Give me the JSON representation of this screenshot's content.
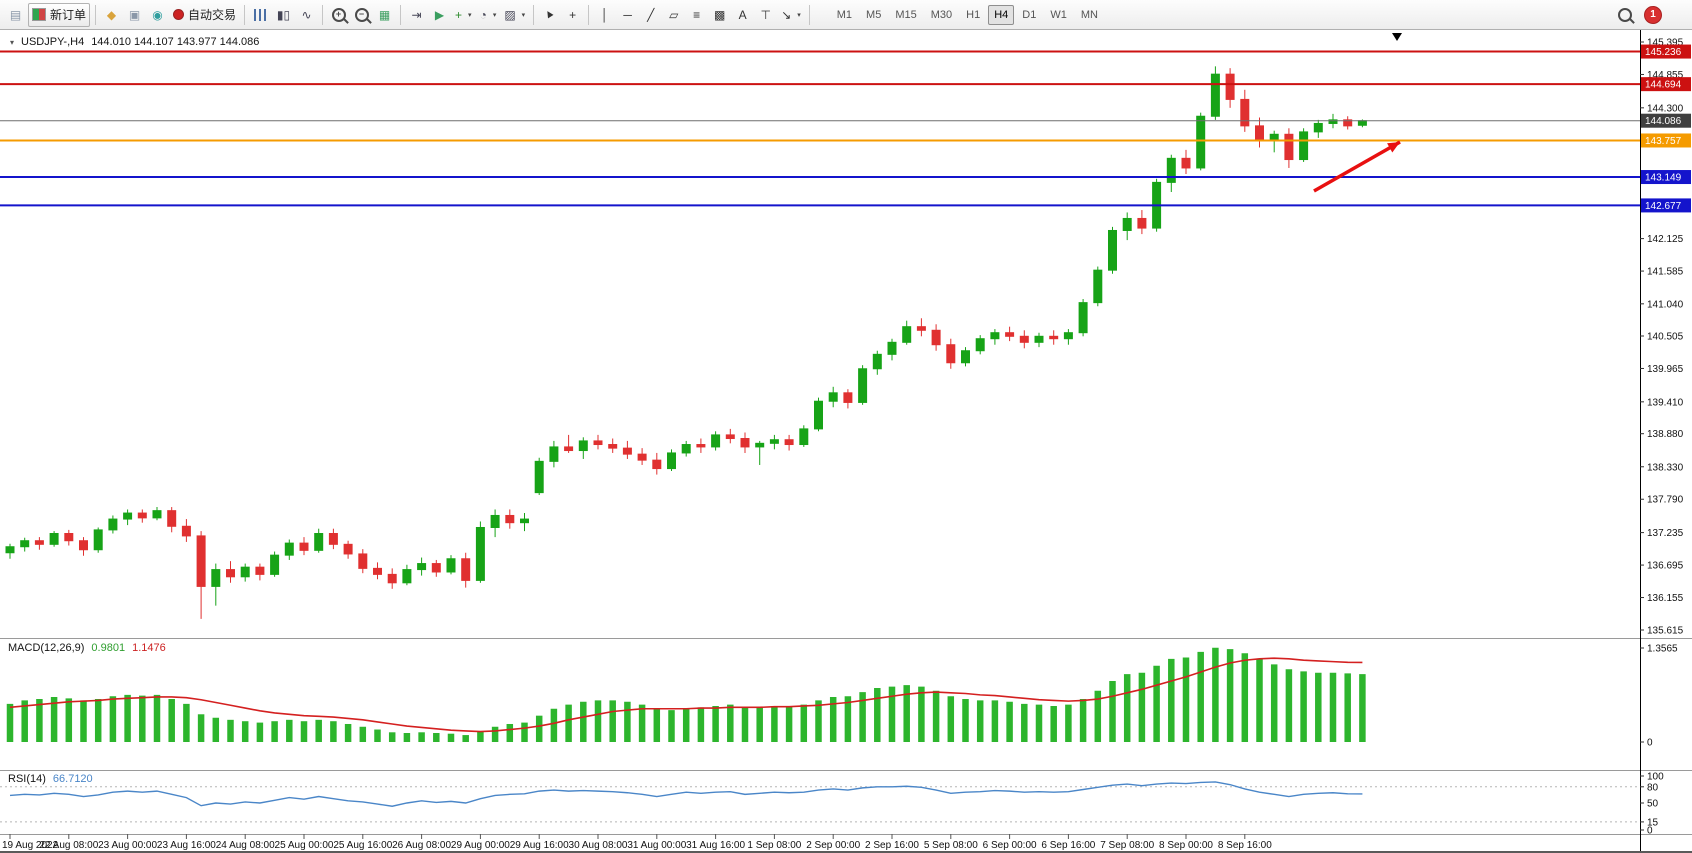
{
  "toolbar": {
    "items": [
      {
        "type": "icon",
        "name": "chart-window-icon",
        "glyph": "▤",
        "color": "#8a97a8"
      },
      {
        "type": "button",
        "name": "new-order-button",
        "shape": "ticket",
        "label": "新订单",
        "bordered": true
      },
      {
        "type": "sep"
      },
      {
        "type": "icon",
        "name": "market-watch-icon",
        "glyph": "◆",
        "color": "#d9a33c"
      },
      {
        "type": "icon",
        "name": "profiles-icon",
        "glyph": "▣",
        "color": "#8a97a8"
      },
      {
        "type": "icon",
        "name": "navigator-icon",
        "glyph": "◉",
        "color": "#2f9e9e"
      },
      {
        "type": "button",
        "name": "autotrading-button",
        "shape": "dot",
        "label": "自动交易"
      },
      {
        "type": "sep"
      },
      {
        "type": "icon",
        "name": "bar-chart-type-icon",
        "shape": "bars"
      },
      {
        "type": "icon",
        "name": "candlestick-type-icon",
        "glyph": "▮▯",
        "color": "#444455"
      },
      {
        "type": "icon",
        "name": "line-chart-type-icon",
        "glyph": "∿",
        "color": "#444455"
      },
      {
        "type": "sep"
      },
      {
        "type": "icon",
        "name": "zoom-in-icon",
        "shape": "magnifier",
        "sign": "+"
      },
      {
        "type": "icon",
        "name": "zoom-out-icon",
        "shape": "magnifier",
        "sign": "−"
      },
      {
        "type": "icon",
        "name": "tile-windows-icon",
        "glyph": "▦",
        "color": "#3a9e5f"
      },
      {
        "type": "sep"
      },
      {
        "type": "icon",
        "name": "chart-shift-icon",
        "glyph": "⇥",
        "color": "#444455"
      },
      {
        "type": "icon",
        "name": "auto-scroll-icon",
        "glyph": "▶",
        "color": "#3a9e5f"
      },
      {
        "type": "dropdown",
        "name": "indicators-menu",
        "glyph": "+",
        "color": "#2e8b2e"
      },
      {
        "type": "dropdown",
        "name": "periods-menu",
        "glyph": "◔",
        "color": "#444455"
      },
      {
        "type": "dropdown",
        "name": "templates-menu",
        "glyph": "▨",
        "color": "#444455"
      },
      {
        "type": "sep"
      },
      {
        "type": "icon",
        "name": "cursor-icon",
        "shape": "cursor"
      },
      {
        "type": "icon",
        "name": "crosshair-icon",
        "glyph": "+",
        "color": "#333333"
      },
      {
        "type": "sep"
      },
      {
        "type": "icon",
        "name": "vertical-line-icon",
        "glyph": "│",
        "color": "#333333"
      },
      {
        "type": "icon",
        "name": "horizontal-line-icon",
        "glyph": "─",
        "color": "#333333"
      },
      {
        "type": "icon",
        "name": "trendline-icon",
        "glyph": "╱",
        "color": "#333333"
      },
      {
        "type": "icon",
        "name": "channel-icon",
        "glyph": "▱",
        "color": "#333333"
      },
      {
        "type": "icon",
        "name": "fibonacci-icon",
        "glyph": "≡",
        "color": "#333333"
      },
      {
        "type": "icon",
        "name": "shapes-icon",
        "glyph": "▩",
        "color": "#333333"
      },
      {
        "type": "icon",
        "name": "text-icon",
        "glyph": "A",
        "color": "#333333"
      },
      {
        "type": "icon",
        "name": "text-label-icon",
        "glyph": "⊤",
        "color": "#333333"
      },
      {
        "type": "dropdown",
        "name": "arrows-menu",
        "glyph": "↘",
        "color": "#333333"
      },
      {
        "type": "sep"
      }
    ],
    "timeframes": [
      "M1",
      "M5",
      "M15",
      "M30",
      "H1",
      "H4",
      "D1",
      "W1",
      "MN"
    ],
    "active_timeframe": "H4",
    "notification_count": "1"
  },
  "chart": {
    "marker": "▾",
    "symbol_period": "USDJPY-,H4",
    "ohlc": "144.010 144.107 143.977 144.086"
  },
  "chart_data": {
    "type": "candlestick",
    "symbol": "USDJPY-",
    "timeframe": "H4",
    "ohlc": {
      "open": 144.01,
      "high": 144.107,
      "low": 143.977,
      "close": 144.086
    },
    "main": {
      "ylim": [
        135.615,
        145.395
      ]
    },
    "colors": {
      "bull": "#17a317",
      "bear": "#e03030",
      "macd_hist": "#2db52d",
      "macd_signal": "#d42020",
      "rsi": "#4a86c8",
      "background": "#ffffff"
    },
    "price_ticks": [
      "145.395",
      "144.855",
      "144.300",
      "142.125",
      "141.585",
      "141.040",
      "140.505",
      "139.965",
      "139.410",
      "138.880",
      "138.330",
      "137.790",
      "137.235",
      "136.695",
      "136.155",
      "135.615"
    ],
    "hlines": [
      {
        "price": 145.236,
        "label": "145.236",
        "color": "#cc1111",
        "badge": "#cc1111",
        "width": 2
      },
      {
        "price": 144.694,
        "label": "144.694",
        "color": "#cc1111",
        "badge": "#cc1111",
        "width": 2
      },
      {
        "price": 144.086,
        "label": "144.086",
        "color": "#6e6e6e",
        "badge": "#3f3f3f",
        "width": 1
      },
      {
        "price": 143.757,
        "label": "143.757",
        "color": "#f59b00",
        "badge": "#f59b00",
        "width": 2
      },
      {
        "price": 143.149,
        "label": "143.149",
        "color": "#1414cc",
        "badge": "#1414cc",
        "width": 2
      },
      {
        "price": 142.677,
        "label": "142.677",
        "color": "#1414cc",
        "badge": "#1414cc",
        "width": 2
      }
    ],
    "candles": [
      [
        136.9,
        137.05,
        136.8,
        137.0
      ],
      [
        137.0,
        137.15,
        136.92,
        137.1
      ],
      [
        137.1,
        137.16,
        136.95,
        137.04
      ],
      [
        137.04,
        137.26,
        137.0,
        137.22
      ],
      [
        137.22,
        137.28,
        137.02,
        137.1
      ],
      [
        137.1,
        137.16,
        136.85,
        136.95
      ],
      [
        136.95,
        137.32,
        136.9,
        137.28
      ],
      [
        137.28,
        137.52,
        137.22,
        137.46
      ],
      [
        137.46,
        137.62,
        137.36,
        137.56
      ],
      [
        137.56,
        137.62,
        137.4,
        137.48
      ],
      [
        137.48,
        137.66,
        137.44,
        137.6
      ],
      [
        137.6,
        137.66,
        137.24,
        137.34
      ],
      [
        137.34,
        137.46,
        137.08,
        137.18
      ],
      [
        137.18,
        137.26,
        135.8,
        136.34
      ],
      [
        136.34,
        136.72,
        136.02,
        136.62
      ],
      [
        136.62,
        136.76,
        136.4,
        136.5
      ],
      [
        136.5,
        136.72,
        136.42,
        136.66
      ],
      [
        136.66,
        136.72,
        136.44,
        136.54
      ],
      [
        136.54,
        136.92,
        136.5,
        136.86
      ],
      [
        136.86,
        137.12,
        136.78,
        137.06
      ],
      [
        137.06,
        137.16,
        136.86,
        136.94
      ],
      [
        136.94,
        137.3,
        136.9,
        137.22
      ],
      [
        137.22,
        137.3,
        136.96,
        137.04
      ],
      [
        137.04,
        137.1,
        136.8,
        136.88
      ],
      [
        136.88,
        136.96,
        136.56,
        136.64
      ],
      [
        136.64,
        136.74,
        136.46,
        136.54
      ],
      [
        136.54,
        136.64,
        136.3,
        136.4
      ],
      [
        136.4,
        136.7,
        136.36,
        136.62
      ],
      [
        136.62,
        136.82,
        136.52,
        136.72
      ],
      [
        136.72,
        136.78,
        136.5,
        136.58
      ],
      [
        136.58,
        136.86,
        136.54,
        136.8
      ],
      [
        136.8,
        136.9,
        136.32,
        136.44
      ],
      [
        136.44,
        137.42,
        136.4,
        137.32
      ],
      [
        137.32,
        137.62,
        137.16,
        137.52
      ],
      [
        137.52,
        137.62,
        137.3,
        137.4
      ],
      [
        137.4,
        137.56,
        137.26,
        137.46
      ],
      [
        137.9,
        138.48,
        137.86,
        138.42
      ],
      [
        138.42,
        138.76,
        138.32,
        138.66
      ],
      [
        138.66,
        138.86,
        138.56,
        138.6
      ],
      [
        138.6,
        138.82,
        138.46,
        138.76
      ],
      [
        138.76,
        138.86,
        138.62,
        138.7
      ],
      [
        138.7,
        138.8,
        138.56,
        138.64
      ],
      [
        138.64,
        138.76,
        138.46,
        138.54
      ],
      [
        138.54,
        138.64,
        138.36,
        138.44
      ],
      [
        138.44,
        138.56,
        138.2,
        138.3
      ],
      [
        138.3,
        138.62,
        138.26,
        138.56
      ],
      [
        138.56,
        138.76,
        138.5,
        138.7
      ],
      [
        138.7,
        138.8,
        138.56,
        138.66
      ],
      [
        138.66,
        138.92,
        138.6,
        138.86
      ],
      [
        138.86,
        138.96,
        138.72,
        138.8
      ],
      [
        138.8,
        138.9,
        138.56,
        138.66
      ],
      [
        138.66,
        138.76,
        138.36,
        138.72
      ],
      [
        138.72,
        138.86,
        138.62,
        138.78
      ],
      [
        138.78,
        138.86,
        138.6,
        138.7
      ],
      [
        138.7,
        139.02,
        138.66,
        138.96
      ],
      [
        138.96,
        139.48,
        138.92,
        139.42
      ],
      [
        139.42,
        139.66,
        139.32,
        139.56
      ],
      [
        139.56,
        139.62,
        139.3,
        139.4
      ],
      [
        139.4,
        140.02,
        139.36,
        139.96
      ],
      [
        139.96,
        140.26,
        139.86,
        140.2
      ],
      [
        140.2,
        140.46,
        140.1,
        140.4
      ],
      [
        140.4,
        140.76,
        140.36,
        140.66
      ],
      [
        140.66,
        140.8,
        140.5,
        140.6
      ],
      [
        140.6,
        140.7,
        140.26,
        140.36
      ],
      [
        140.36,
        140.46,
        139.96,
        140.06
      ],
      [
        140.06,
        140.32,
        140.0,
        140.26
      ],
      [
        140.26,
        140.52,
        140.2,
        140.46
      ],
      [
        140.46,
        140.62,
        140.36,
        140.56
      ],
      [
        140.56,
        140.66,
        140.42,
        140.5
      ],
      [
        140.5,
        140.6,
        140.3,
        140.4
      ],
      [
        140.4,
        140.56,
        140.32,
        140.5
      ],
      [
        140.5,
        140.6,
        140.36,
        140.46
      ],
      [
        140.46,
        140.62,
        140.36,
        140.56
      ],
      [
        140.56,
        141.12,
        140.5,
        141.06
      ],
      [
        141.06,
        141.66,
        141.0,
        141.6
      ],
      [
        141.6,
        142.32,
        141.54,
        142.26
      ],
      [
        142.26,
        142.56,
        142.1,
        142.46
      ],
      [
        142.46,
        142.6,
        142.2,
        142.3
      ],
      [
        142.3,
        143.12,
        142.24,
        143.06
      ],
      [
        143.06,
        143.52,
        142.9,
        143.46
      ],
      [
        143.46,
        143.6,
        143.2,
        143.3
      ],
      [
        143.3,
        144.22,
        143.26,
        144.16
      ],
      [
        144.16,
        144.99,
        144.1,
        144.86
      ],
      [
        144.86,
        144.96,
        144.3,
        144.44
      ],
      [
        144.44,
        144.6,
        143.9,
        144.0
      ],
      [
        144.0,
        144.14,
        143.64,
        143.76
      ],
      [
        143.76,
        143.92,
        143.56,
        143.86
      ],
      [
        143.86,
        143.96,
        143.3,
        143.44
      ],
      [
        143.44,
        143.96,
        143.4,
        143.9
      ],
      [
        143.9,
        144.1,
        143.8,
        144.04
      ],
      [
        144.04,
        144.2,
        143.96,
        144.1
      ],
      [
        144.1,
        144.16,
        143.94,
        144.0
      ],
      [
        144.01,
        144.107,
        143.977,
        144.086
      ]
    ],
    "time_labels": [
      "19 Aug 2022",
      "22 Aug 08:00",
      "23 Aug 00:00",
      "23 Aug 16:00",
      "24 Aug 08:00",
      "25 Aug 00:00",
      "25 Aug 16:00",
      "26 Aug 08:00",
      "29 Aug 00:00",
      "29 Aug 16:00",
      "30 Aug 08:00",
      "31 Aug 00:00",
      "31 Aug 16:00",
      "1 Sep 08:00",
      "2 Sep 00:00",
      "2 Sep 16:00",
      "5 Sep 08:00",
      "6 Sep 00:00",
      "6 Sep 16:00",
      "7 Sep 08:00",
      "8 Sep 00:00",
      "8 Sep 16:00"
    ],
    "macd": {
      "name": "MACD(12,26,9)",
      "value_main": "0.9801",
      "value_signal": "1.1476",
      "axis": [
        "1.3565",
        "0"
      ],
      "histogram": [
        0.55,
        0.6,
        0.62,
        0.65,
        0.63,
        0.6,
        0.62,
        0.66,
        0.68,
        0.67,
        0.68,
        0.62,
        0.55,
        0.4,
        0.35,
        0.32,
        0.3,
        0.28,
        0.3,
        0.32,
        0.3,
        0.32,
        0.3,
        0.26,
        0.22,
        0.18,
        0.14,
        0.13,
        0.14,
        0.13,
        0.12,
        0.1,
        0.15,
        0.22,
        0.26,
        0.28,
        0.38,
        0.48,
        0.54,
        0.58,
        0.6,
        0.6,
        0.58,
        0.54,
        0.48,
        0.46,
        0.48,
        0.5,
        0.52,
        0.54,
        0.5,
        0.5,
        0.52,
        0.52,
        0.54,
        0.6,
        0.65,
        0.66,
        0.72,
        0.78,
        0.8,
        0.82,
        0.8,
        0.74,
        0.66,
        0.62,
        0.6,
        0.6,
        0.58,
        0.55,
        0.54,
        0.52,
        0.54,
        0.62,
        0.74,
        0.88,
        0.98,
        1.0,
        1.1,
        1.2,
        1.22,
        1.3,
        1.36,
        1.34,
        1.28,
        1.2,
        1.12,
        1.05,
        1.02,
        1.0,
        1.0,
        0.99,
        0.9801
      ],
      "signal": [
        0.5,
        0.52,
        0.54,
        0.56,
        0.58,
        0.59,
        0.6,
        0.62,
        0.63,
        0.64,
        0.65,
        0.65,
        0.64,
        0.61,
        0.57,
        0.53,
        0.49,
        0.45,
        0.42,
        0.4,
        0.38,
        0.37,
        0.36,
        0.34,
        0.32,
        0.29,
        0.26,
        0.23,
        0.21,
        0.19,
        0.17,
        0.16,
        0.15,
        0.16,
        0.18,
        0.2,
        0.23,
        0.27,
        0.32,
        0.36,
        0.4,
        0.44,
        0.46,
        0.48,
        0.48,
        0.48,
        0.48,
        0.49,
        0.49,
        0.5,
        0.5,
        0.5,
        0.51,
        0.51,
        0.52,
        0.53,
        0.55,
        0.57,
        0.6,
        0.63,
        0.66,
        0.69,
        0.71,
        0.72,
        0.71,
        0.7,
        0.68,
        0.67,
        0.65,
        0.63,
        0.61,
        0.6,
        0.59,
        0.6,
        0.62,
        0.66,
        0.71,
        0.76,
        0.82,
        0.88,
        0.94,
        1.01,
        1.08,
        1.14,
        1.18,
        1.2,
        1.21,
        1.2,
        1.18,
        1.17,
        1.16,
        1.15,
        1.1476
      ]
    },
    "rsi": {
      "name": "RSI(14)",
      "value": "66.7120",
      "axis": [
        "100",
        "80",
        "50",
        "15",
        "0"
      ],
      "levels": [
        80,
        15
      ],
      "line": [
        64,
        66,
        65,
        68,
        66,
        62,
        65,
        70,
        72,
        70,
        72,
        66,
        60,
        45,
        50,
        48,
        52,
        50,
        55,
        60,
        57,
        62,
        58,
        54,
        52,
        48,
        44,
        50,
        54,
        51,
        53,
        50,
        58,
        64,
        66,
        67,
        72,
        74,
        72,
        73,
        72,
        71,
        69,
        66,
        62,
        66,
        70,
        68,
        70,
        71,
        66,
        68,
        70,
        69,
        70,
        74,
        76,
        74,
        78,
        80,
        80,
        81,
        79,
        74,
        68,
        70,
        71,
        73,
        72,
        70,
        71,
        70,
        71,
        75,
        79,
        83,
        85,
        82,
        85,
        87,
        86,
        88,
        89,
        84,
        76,
        70,
        66,
        62,
        66,
        68,
        69,
        67,
        66.7
      ]
    },
    "annotations": {
      "arrow": {
        "from": [
          1314,
          191
        ],
        "to": [
          1400,
          142
        ],
        "color": "#e81010"
      }
    }
  }
}
